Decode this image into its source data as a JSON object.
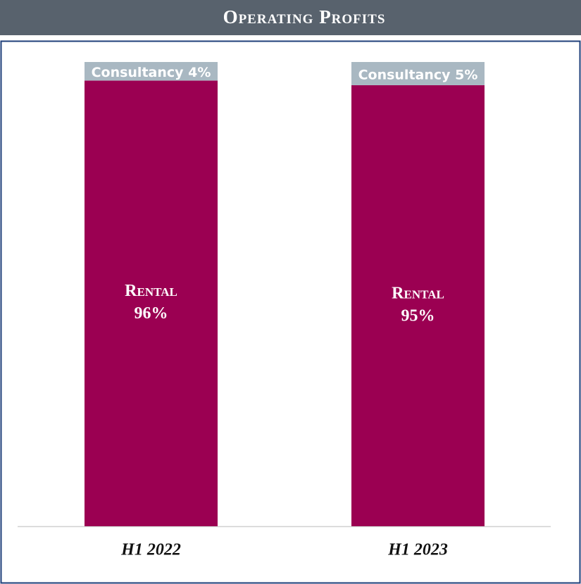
{
  "chart_data": {
    "type": "stacked-bar",
    "title": "Operating Profits",
    "categories": [
      "H1 2022",
      "H1 2023"
    ],
    "series": [
      {
        "name": "Rental",
        "color": "#9b0052",
        "values": [
          96,
          95
        ],
        "value_labels": [
          "96%",
          "95%"
        ]
      },
      {
        "name": "Consultancy",
        "color": "#a9b8c2",
        "values": [
          4,
          5
        ],
        "value_labels": [
          "4%",
          "5%"
        ]
      }
    ]
  }
}
